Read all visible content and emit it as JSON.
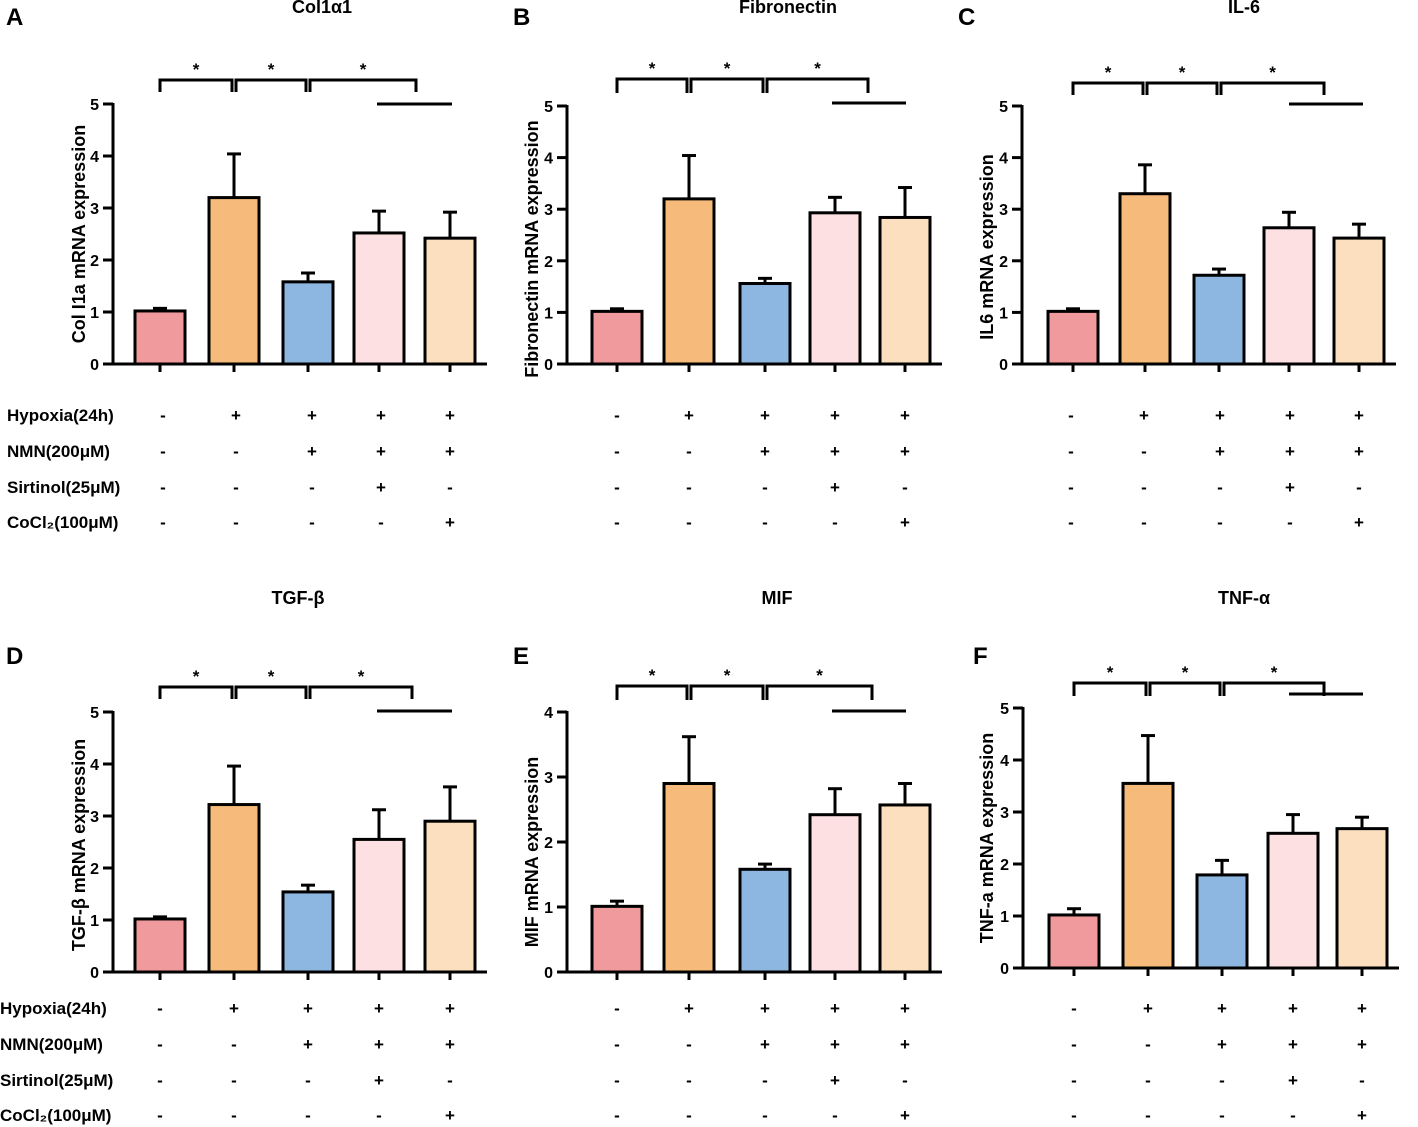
{
  "colors": [
    "#f19a9d",
    "#f6bb7a",
    "#8db7e1",
    "#fce0e2",
    "#fbdfbe"
  ],
  "condition_rows": [
    "Hypoxia(24h)",
    "NMN(200μM)",
    "Sirtinol(25μM)",
    "CoCl₂(100μM)"
  ],
  "conditions": [
    [
      "-",
      "+",
      "+",
      "+",
      "+"
    ],
    [
      "-",
      "-",
      "+",
      "+",
      "+"
    ],
    [
      "-",
      "-",
      "-",
      "+",
      "-"
    ],
    [
      "-",
      "-",
      "-",
      "-",
      "+"
    ]
  ],
  "sig_label": "*",
  "chart_data": [
    {
      "panel": "A",
      "type": "bar",
      "title": "Col1α1",
      "ylabel": "Col I1a mRNA expression",
      "ylim": [
        0,
        5
      ],
      "yticks": [
        "0",
        "1",
        "2",
        "3",
        "4",
        "5"
      ],
      "values": [
        1.02,
        3.2,
        1.58,
        2.52,
        2.42
      ],
      "errors": [
        0.05,
        0.84,
        0.17,
        0.42,
        0.5
      ],
      "significance": [
        "*",
        "*",
        "*"
      ]
    },
    {
      "panel": "B",
      "type": "bar",
      "title": "Fibronectin",
      "ylabel": "Fibronectin mRNA expression",
      "ylim": [
        0,
        5
      ],
      "yticks": [
        "0",
        "1",
        "2",
        "3",
        "4",
        "5"
      ],
      "values": [
        1.02,
        3.2,
        1.56,
        2.93,
        2.84
      ],
      "errors": [
        0.05,
        0.84,
        0.1,
        0.3,
        0.58
      ],
      "significance": [
        "*",
        "*",
        "*"
      ]
    },
    {
      "panel": "C",
      "type": "bar",
      "title": "IL-6",
      "ylabel": "IL6 mRNA expression",
      "ylim": [
        0,
        5
      ],
      "yticks": [
        "0",
        "1",
        "2",
        "3",
        "4",
        "5"
      ],
      "values": [
        1.02,
        3.3,
        1.72,
        2.64,
        2.44
      ],
      "errors": [
        0.05,
        0.56,
        0.12,
        0.3,
        0.27
      ],
      "significance": [
        "*",
        "*",
        "*"
      ]
    },
    {
      "panel": "D",
      "type": "bar",
      "title": "TGF-β",
      "ylabel": "TGF-β mRNA expression",
      "ylim": [
        0,
        5
      ],
      "yticks": [
        "0",
        "1",
        "2",
        "3",
        "4",
        "5"
      ],
      "values": [
        1.02,
        3.22,
        1.54,
        2.55,
        2.9
      ],
      "errors": [
        0.04,
        0.74,
        0.13,
        0.57,
        0.66
      ],
      "significance": [
        "*",
        "*",
        "*"
      ]
    },
    {
      "panel": "E",
      "type": "bar",
      "title": "MIF",
      "ylabel": "MIF mRNA expression",
      "ylim": [
        0,
        4
      ],
      "yticks": [
        "0",
        "1",
        "2",
        "3",
        "4"
      ],
      "values": [
        1.01,
        2.9,
        1.58,
        2.42,
        2.57
      ],
      "errors": [
        0.08,
        0.72,
        0.08,
        0.4,
        0.33
      ],
      "significance": [
        "*",
        "*",
        "*"
      ]
    },
    {
      "panel": "F",
      "type": "bar",
      "title": "TNF-α",
      "ylabel": "TNF-a mRNA expression",
      "ylim": [
        0,
        5
      ],
      "yticks": [
        "0",
        "1",
        "2",
        "3",
        "4",
        "5"
      ],
      "values": [
        1.02,
        3.55,
        1.79,
        2.59,
        2.68
      ],
      "errors": [
        0.12,
        0.92,
        0.28,
        0.36,
        0.22
      ],
      "significance": [
        "*",
        "*",
        "*"
      ]
    }
  ]
}
